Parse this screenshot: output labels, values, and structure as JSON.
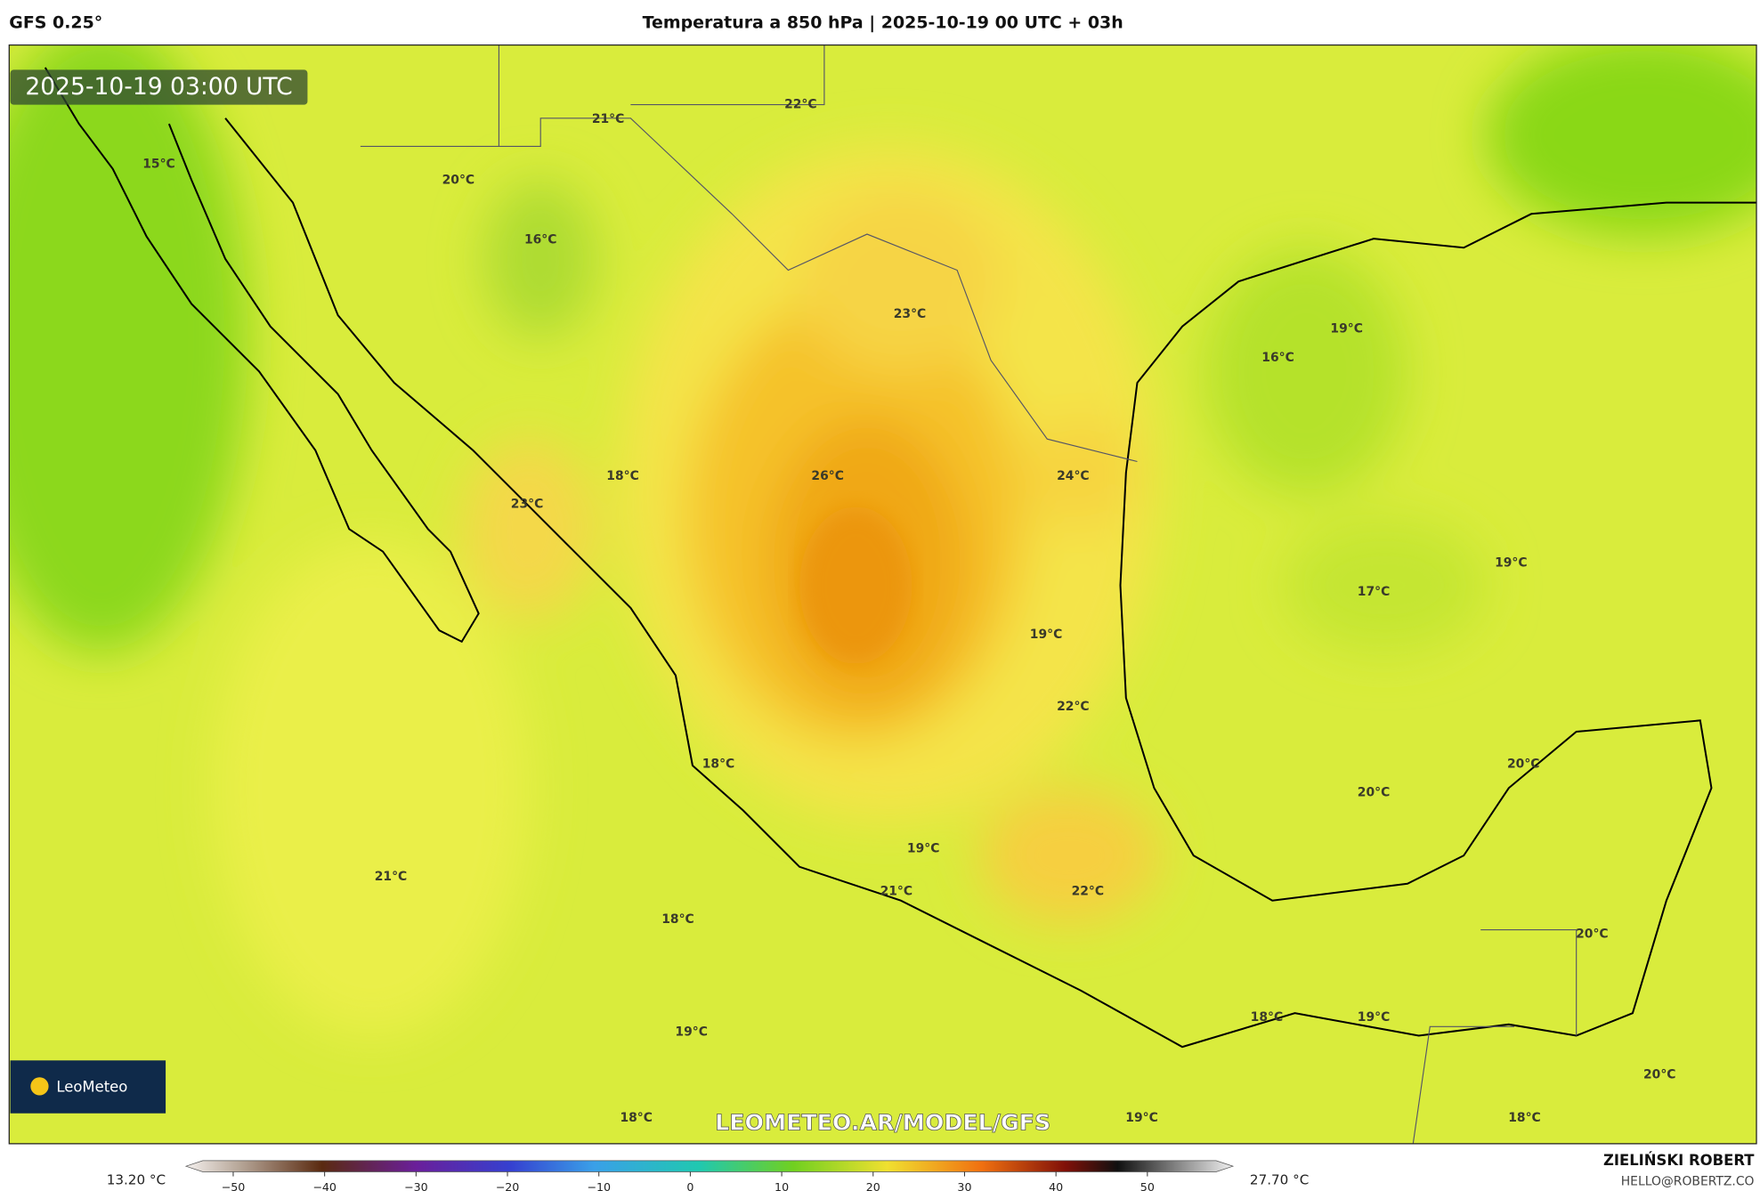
{
  "header": {
    "model": "GFS 0.25°",
    "title": "Temperatura a 850 hPa | 2025-10-19 00 UTC + 03h"
  },
  "map": {
    "timestamp": "2025-10-19 03:00 UTC",
    "logo": "LeoMeteo",
    "watermark": "LEOMETEO.AR/MODEL/GFS",
    "contour_labels": [
      "21°C",
      "22°C",
      "15°C",
      "20°C",
      "16°C",
      "23°C",
      "19°C",
      "16°C",
      "18°C",
      "26°C",
      "24°C",
      "23°C",
      "19°C",
      "17°C",
      "19°C",
      "22°C",
      "18°C",
      "20°C",
      "20°C",
      "19°C",
      "21°C",
      "21°C",
      "22°C",
      "18°C",
      "20°C",
      "18°C",
      "19°C",
      "19°C",
      "20°C",
      "18°C",
      "19°C",
      "18°C"
    ]
  },
  "legend": {
    "min_label": "13.20 °C",
    "max_label": "27.70 °C",
    "ticks": [
      {
        "value": -50,
        "label": "−50"
      },
      {
        "value": -40,
        "label": "−40"
      },
      {
        "value": -30,
        "label": "−30"
      },
      {
        "value": -20,
        "label": "−20"
      },
      {
        "value": -10,
        "label": "−10"
      },
      0,
      10,
      20,
      30,
      40,
      50
    ]
  },
  "footer": {
    "author": "ZIELIŃSKI ROBERT",
    "email": "HELLO@ROBERTZ.CO"
  }
}
